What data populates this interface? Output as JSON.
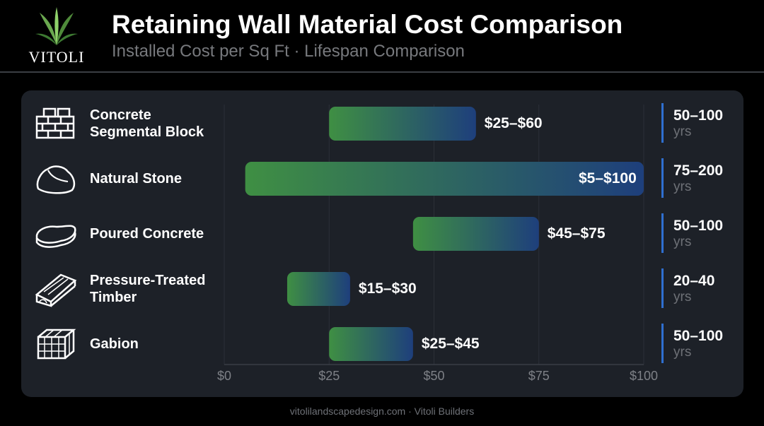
{
  "header": {
    "brand": "VITOLI",
    "title": "Retaining Wall Material Cost Comparison",
    "subtitle": "Installed Cost per Sq Ft · Lifespan Comparison"
  },
  "footer": {
    "text": "vitolilandscapedesign.com · Vitoli Builders"
  },
  "colors": {
    "bar_start": "#3f8f43",
    "bar_end": "#1e3f7c",
    "accent": "#2f6fd0",
    "panel": "#1d2128"
  },
  "chart_data": {
    "type": "bar",
    "orientation": "horizontal-range",
    "title": "Retaining Wall Material Cost Comparison",
    "subtitle": "Installed Cost per Sq Ft · Lifespan Comparison",
    "xlim": [
      0,
      100
    ],
    "ticks": [
      0,
      25,
      50,
      75,
      100
    ],
    "tick_labels": [
      "$0",
      "$25",
      "$50",
      "$75",
      "$100"
    ],
    "grid": true,
    "categories": [
      {
        "name": "Concrete Segmental Block",
        "lines": [
          "Concrete",
          "Segmental Block"
        ],
        "icon": "block-wall-icon",
        "min": 25,
        "max": 60,
        "label": "$25–$60",
        "lifespan": "50–100",
        "unit": "yrs"
      },
      {
        "name": "Natural Stone",
        "lines": [
          "Natural Stone"
        ],
        "icon": "stone-icon",
        "min": 5,
        "max": 100,
        "label": "$5–$100",
        "lifespan": "75–200",
        "unit": "yrs"
      },
      {
        "name": "Poured Concrete",
        "lines": [
          "Poured Concrete"
        ],
        "icon": "poured-concrete-icon",
        "min": 45,
        "max": 75,
        "label": "$45–$75",
        "lifespan": "50–100",
        "unit": "yrs"
      },
      {
        "name": "Pressure-Treated Timber",
        "lines": [
          "Pressure-Treated",
          "Timber"
        ],
        "icon": "timber-icon",
        "min": 15,
        "max": 30,
        "label": "$15–$30",
        "lifespan": "20–40",
        "unit": "yrs"
      },
      {
        "name": "Gabion",
        "lines": [
          "Gabion"
        ],
        "icon": "gabion-icon",
        "min": 25,
        "max": 45,
        "label": "$25–$45",
        "lifespan": "50–100",
        "unit": "yrs"
      }
    ]
  }
}
